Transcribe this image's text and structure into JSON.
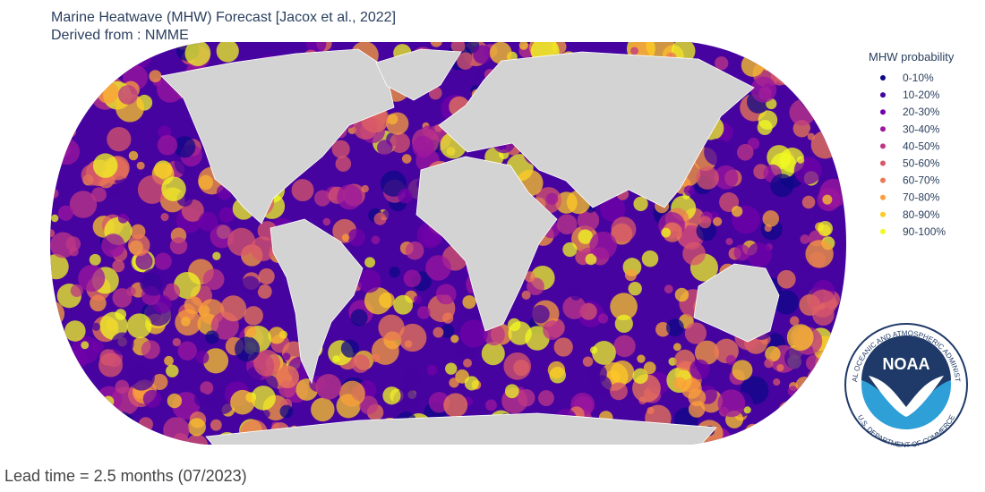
{
  "header": {
    "title": "Marine Heatwave (MHW) Forecast [Jacox et al., 2022]",
    "subtitle": "Derived from : NMME"
  },
  "legend": {
    "title": "MHW probability",
    "items": [
      {
        "label": "0-10%",
        "color": "#0d0887"
      },
      {
        "label": "10-20%",
        "color": "#46039f"
      },
      {
        "label": "20-30%",
        "color": "#7201a8"
      },
      {
        "label": "30-40%",
        "color": "#9c179e"
      },
      {
        "label": "40-50%",
        "color": "#bd3786"
      },
      {
        "label": "50-60%",
        "color": "#d8576b"
      },
      {
        "label": "60-70%",
        "color": "#ed7953"
      },
      {
        "label": "70-80%",
        "color": "#fb9f3a"
      },
      {
        "label": "80-90%",
        "color": "#fdca26"
      },
      {
        "label": "90-100%",
        "color": "#f0f921"
      }
    ]
  },
  "footer": {
    "lead_time": "Lead time = 2.5 months (07/2023)"
  },
  "logo": {
    "name": "NOAA",
    "top_text": "NATIONAL OCEANIC AND ATMOSPHERIC ADMINISTRATION",
    "bottom_text": "U.S. DEPARTMENT OF COMMERCE"
  }
}
